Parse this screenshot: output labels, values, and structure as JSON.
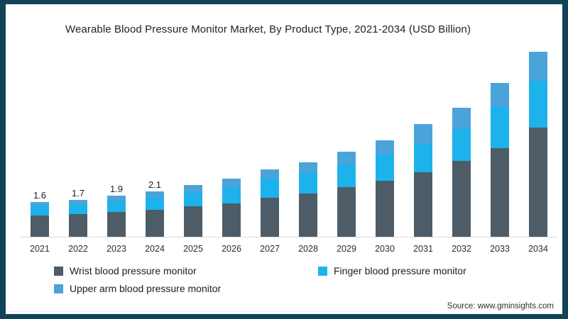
{
  "title": "Wearable Blood Pressure Monitor Market, By Product Type, 2021-2034 (USD Billion)",
  "source": "Source: www.gminsights.com",
  "colors": {
    "frame": "#124459",
    "wrist": "#4e5c68",
    "finger": "#1db2ec",
    "upper_arm": "#4aa4d9",
    "baseline": "#dcdcdc"
  },
  "legend": {
    "items": [
      {
        "label": "Wrist  blood pressure monitor",
        "series": "wrist"
      },
      {
        "label": "Finger blood pressure monitor",
        "series": "finger"
      },
      {
        "label": "Upper arm blood pressure monitor",
        "series": "upper_arm"
      }
    ]
  },
  "chart_data": {
    "type": "bar",
    "stacked": true,
    "title": "Wearable Blood Pressure Monitor Market, By Product Type, 2021-2034 (USD Billion)",
    "unit": "USD Billion",
    "categories": [
      "2021",
      "2022",
      "2023",
      "2024",
      "2025",
      "2026",
      "2027",
      "2028",
      "2029",
      "2030",
      "2031",
      "2032",
      "2033",
      "2034"
    ],
    "series": [
      {
        "name": "Wrist blood pressure monitor",
        "color": "#4e5c68",
        "values": [
          1.0,
          1.05,
          1.15,
          1.25,
          1.4,
          1.55,
          1.8,
          2.0,
          2.3,
          2.6,
          3.0,
          3.5,
          4.1,
          5.05
        ]
      },
      {
        "name": "Finger blood pressure monitor",
        "color": "#1db2ec",
        "values": [
          0.4,
          0.43,
          0.48,
          0.55,
          0.65,
          0.76,
          0.9,
          0.95,
          1.05,
          1.2,
          1.3,
          1.5,
          1.9,
          2.15
        ]
      },
      {
        "name": "Upper arm blood pressure monitor",
        "color": "#4aa4d9",
        "values": [
          0.2,
          0.22,
          0.27,
          0.3,
          0.35,
          0.39,
          0.4,
          0.5,
          0.58,
          0.66,
          0.9,
          0.96,
          1.1,
          1.35
        ]
      }
    ],
    "totals": [
      1.6,
      1.7,
      1.9,
      2.1,
      2.4,
      2.7,
      3.1,
      3.45,
      3.93,
      4.46,
      5.2,
      5.96,
      7.1,
      8.55
    ],
    "total_labels": [
      "1.6",
      "1.7",
      "1.9",
      "2.1",
      "",
      "",
      "",
      "",
      "",
      "",
      "",
      "",
      "",
      ""
    ],
    "ylim": [
      0,
      9
    ],
    "grid": false,
    "legend_position": "bottom",
    "value_axis_hidden": true
  }
}
